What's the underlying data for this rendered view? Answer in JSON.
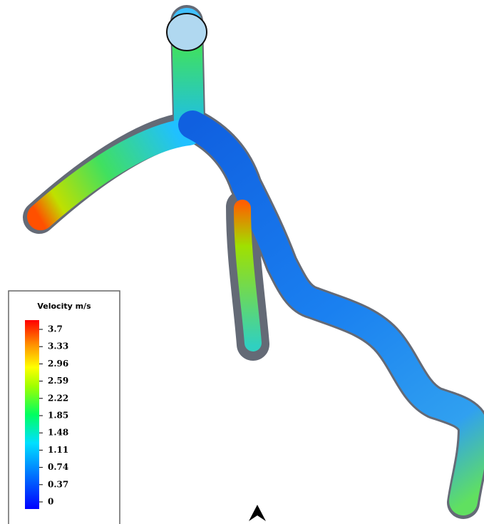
{
  "legend": {
    "title": "Velocity m/s",
    "ticks": [
      3.7,
      3.33,
      2.96,
      2.59,
      2.22,
      1.85,
      1.48,
      1.11,
      0.74,
      0.37,
      0
    ]
  }
}
